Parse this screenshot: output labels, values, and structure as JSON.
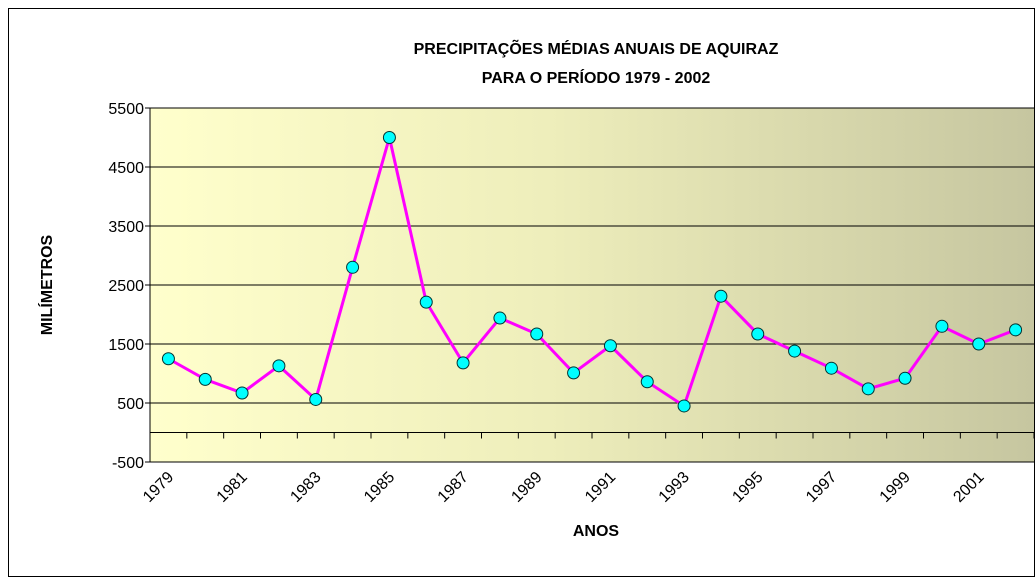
{
  "chart_data": {
    "type": "line",
    "title": [
      "PRECIPITAÇÕES MÉDIAS ANUAIS DE AQUIRAZ",
      "PARA O PERÍODO  1979 - 2002"
    ],
    "x_label": "ANOS",
    "y_label": "MILÍMETROS",
    "categories": [
      "1979",
      null,
      "1981",
      null,
      "1983",
      null,
      "1985",
      null,
      "1987",
      null,
      "1989",
      null,
      "1991",
      null,
      "1993",
      null,
      "1995",
      null,
      "1997",
      null,
      "1999",
      null,
      "2001",
      null
    ],
    "series": [
      {
        "color": "#ff00ff",
        "marker_color": "#00ffff",
        "values": [
          1250,
          900,
          670,
          1130,
          560,
          2800,
          5000,
          2210,
          1180,
          1940,
          1670,
          1010,
          1470,
          860,
          450,
          2310,
          1670,
          1380,
          1090,
          740,
          920,
          1800,
          1500,
          1740
        ]
      }
    ],
    "ylim": [
      -500,
      5500
    ],
    "yticks": [
      -500,
      500,
      1500,
      2500,
      3500,
      4500,
      5500
    ],
    "grid": true
  }
}
